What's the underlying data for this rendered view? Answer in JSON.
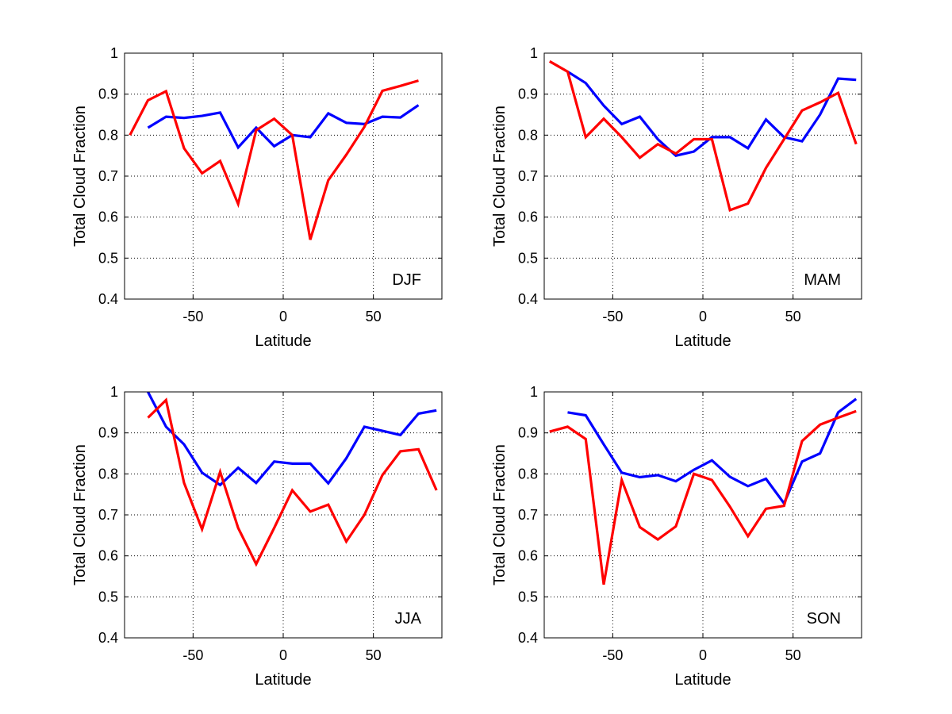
{
  "chart_data": [
    {
      "type": "line",
      "panel_label": "DJF",
      "xlabel": "Latitude",
      "ylabel": "Total Cloud Fraction",
      "xlim": [
        -88,
        88
      ],
      "ylim": [
        0.4,
        1
      ],
      "xticks": [
        "-50",
        "0",
        "50"
      ],
      "yticks": [
        "0.4",
        "0.5",
        "0.6",
        "0.7",
        "0.8",
        "0.9",
        "1"
      ],
      "grid": true,
      "series": [
        {
          "color": "#0000ff",
          "x": [
            -75,
            -65,
            -55,
            -45,
            -35,
            -25,
            -15,
            -5,
            5,
            15,
            25,
            35,
            45,
            55,
            65,
            75
          ],
          "y": [
            0.818,
            0.845,
            0.842,
            0.847,
            0.855,
            0.77,
            0.818,
            0.773,
            0.8,
            0.795,
            0.853,
            0.83,
            0.827,
            0.845,
            0.843,
            0.873
          ]
        },
        {
          "color": "#ff0000",
          "x": [
            -85,
            -75,
            -65,
            -55,
            -45,
            -35,
            -25,
            -15,
            -5,
            5,
            15,
            25,
            35,
            45,
            55,
            65,
            75
          ],
          "y": [
            0.8,
            0.885,
            0.907,
            0.768,
            0.707,
            0.737,
            0.632,
            0.812,
            0.84,
            0.8,
            0.545,
            0.69,
            0.752,
            0.82,
            0.908,
            0.92,
            0.933
          ]
        }
      ]
    },
    {
      "type": "line",
      "panel_label": "MAM",
      "xlabel": "Latitude",
      "ylabel": "Total Cloud Fraction",
      "xlim": [
        -88,
        88
      ],
      "ylim": [
        0.4,
        1
      ],
      "xticks": [
        "-50",
        "0",
        "50"
      ],
      "yticks": [
        "0.4",
        "0.5",
        "0.6",
        "0.7",
        "0.8",
        "0.9",
        "1"
      ],
      "grid": true,
      "series": [
        {
          "color": "#0000ff",
          "x": [
            -75,
            -65,
            -55,
            -45,
            -35,
            -25,
            -15,
            -5,
            5,
            15,
            25,
            35,
            45,
            55,
            65,
            75,
            85
          ],
          "y": [
            0.955,
            0.927,
            0.872,
            0.827,
            0.845,
            0.79,
            0.75,
            0.76,
            0.795,
            0.795,
            0.768,
            0.838,
            0.795,
            0.785,
            0.85,
            0.938,
            0.935
          ]
        },
        {
          "color": "#ff0000",
          "x": [
            -85,
            -75,
            -65,
            -55,
            -45,
            -35,
            -25,
            -15,
            -5,
            5,
            15,
            25,
            35,
            45,
            55,
            65,
            75,
            85
          ],
          "y": [
            0.98,
            0.955,
            0.795,
            0.84,
            0.795,
            0.745,
            0.778,
            0.755,
            0.79,
            0.79,
            0.617,
            0.633,
            0.72,
            0.79,
            0.86,
            0.88,
            0.903,
            0.778
          ]
        }
      ]
    },
    {
      "type": "line",
      "panel_label": "JJA",
      "xlabel": "Latitude",
      "ylabel": "Total Cloud Fraction",
      "xlim": [
        -88,
        88
      ],
      "ylim": [
        0.4,
        1
      ],
      "xticks": [
        "-50",
        "0",
        "50"
      ],
      "yticks": [
        "0.4",
        "0.5",
        "0.6",
        "0.7",
        "0.8",
        "0.9",
        "1"
      ],
      "grid": true,
      "series": [
        {
          "color": "#0000ff",
          "x": [
            -75,
            -65,
            -55,
            -45,
            -35,
            -25,
            -15,
            -5,
            5,
            15,
            25,
            35,
            45,
            55,
            65,
            75,
            85
          ],
          "y": [
            1.0,
            0.915,
            0.872,
            0.803,
            0.773,
            0.815,
            0.778,
            0.83,
            0.825,
            0.825,
            0.777,
            0.838,
            0.915,
            0.905,
            0.895,
            0.947,
            0.955
          ]
        },
        {
          "color": "#ff0000",
          "x": [
            -75,
            -65,
            -55,
            -45,
            -35,
            -25,
            -15,
            -5,
            5,
            15,
            25,
            35,
            45,
            55,
            65,
            75,
            85
          ],
          "y": [
            0.937,
            0.98,
            0.778,
            0.665,
            0.805,
            0.668,
            0.58,
            0.668,
            0.76,
            0.708,
            0.725,
            0.635,
            0.7,
            0.797,
            0.855,
            0.86,
            0.76
          ]
        }
      ]
    },
    {
      "type": "line",
      "panel_label": "SON",
      "xlabel": "Latitude",
      "ylabel": "Total Cloud Fraction",
      "xlim": [
        -88,
        88
      ],
      "ylim": [
        0.4,
        1
      ],
      "xticks": [
        "-50",
        "0",
        "50"
      ],
      "yticks": [
        "0.4",
        "0.5",
        "0.6",
        "0.7",
        "0.8",
        "0.9",
        "1"
      ],
      "grid": true,
      "series": [
        {
          "color": "#0000ff",
          "x": [
            -75,
            -65,
            -55,
            -45,
            -35,
            -25,
            -15,
            -5,
            5,
            15,
            25,
            35,
            45,
            55,
            65,
            75,
            85
          ],
          "y": [
            0.95,
            0.943,
            0.872,
            0.803,
            0.792,
            0.797,
            0.782,
            0.81,
            0.833,
            0.793,
            0.77,
            0.788,
            0.728,
            0.83,
            0.85,
            0.95,
            0.983
          ]
        },
        {
          "color": "#ff0000",
          "x": [
            -85,
            -75,
            -65,
            -55,
            -45,
            -35,
            -25,
            -15,
            -5,
            5,
            15,
            25,
            35,
            45,
            55,
            65,
            75,
            85
          ],
          "y": [
            0.903,
            0.915,
            0.885,
            0.53,
            0.785,
            0.67,
            0.64,
            0.672,
            0.8,
            0.785,
            0.72,
            0.648,
            0.715,
            0.722,
            0.88,
            0.92,
            0.937,
            0.953
          ]
        }
      ]
    }
  ]
}
